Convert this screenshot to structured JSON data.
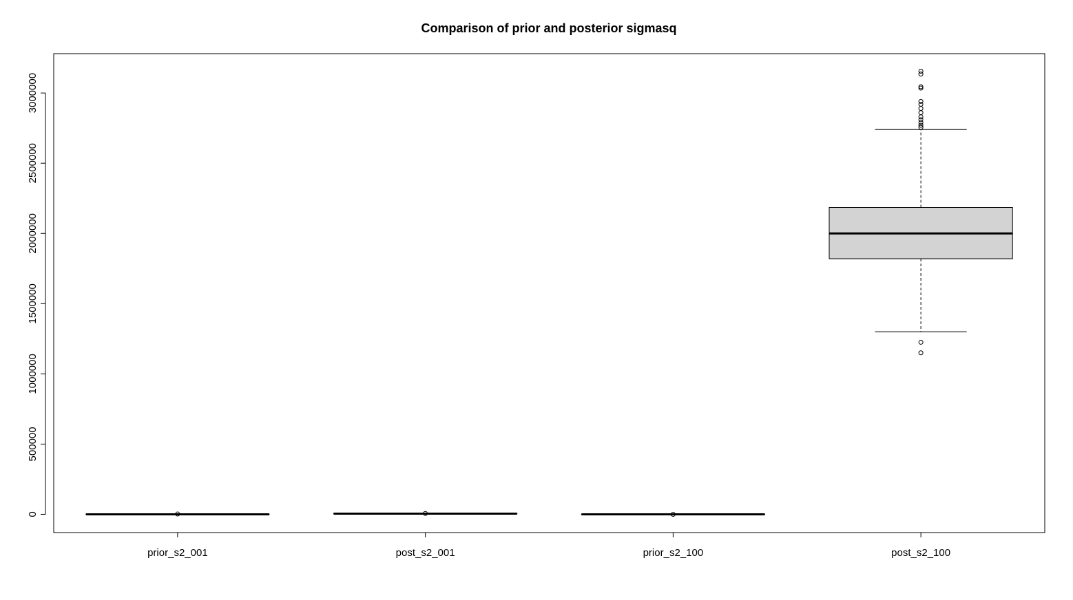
{
  "chart_data": {
    "type": "boxplot",
    "title": "Comparison of prior and posterior sigmasq",
    "xlabel": "",
    "ylabel": "",
    "categories": [
      "prior_s2_001",
      "post_s2_001",
      "prior_s2_100",
      "post_s2_100"
    ],
    "y_ticks": [
      0,
      500000,
      1000000,
      1500000,
      2000000,
      2500000,
      3000000
    ],
    "y_tick_labels": [
      "0",
      "500000",
      "1000000",
      "1500000",
      "2000000",
      "2500000",
      "3000000"
    ],
    "ylim": [
      -130000,
      3280000
    ],
    "grid": false,
    "box_fill": "#d3d3d3",
    "series": [
      {
        "category": "prior_s2_001",
        "whisker_low": 0,
        "q1": 0,
        "median": 0,
        "q3": 0,
        "whisker_high": 0,
        "outliers": [
          2000
        ]
      },
      {
        "category": "post_s2_001",
        "whisker_low": 3000,
        "q1": 4000,
        "median": 5000,
        "q3": 6000,
        "whisker_high": 7000,
        "outliers": [
          6000
        ]
      },
      {
        "category": "prior_s2_100",
        "whisker_low": 0,
        "q1": 0,
        "median": 0,
        "q3": 0,
        "whisker_high": 0,
        "outliers": [
          0
        ]
      },
      {
        "category": "post_s2_100",
        "whisker_low": 1300000,
        "q1": 1820000,
        "median": 2000000,
        "q3": 2185000,
        "whisker_high": 2740000,
        "outliers": [
          1150000,
          1225000,
          2755000,
          2770000,
          2790000,
          2810000,
          2830000,
          2860000,
          2890000,
          2920000,
          2940000,
          3035000,
          3045000,
          3135000,
          3155000
        ]
      }
    ]
  }
}
